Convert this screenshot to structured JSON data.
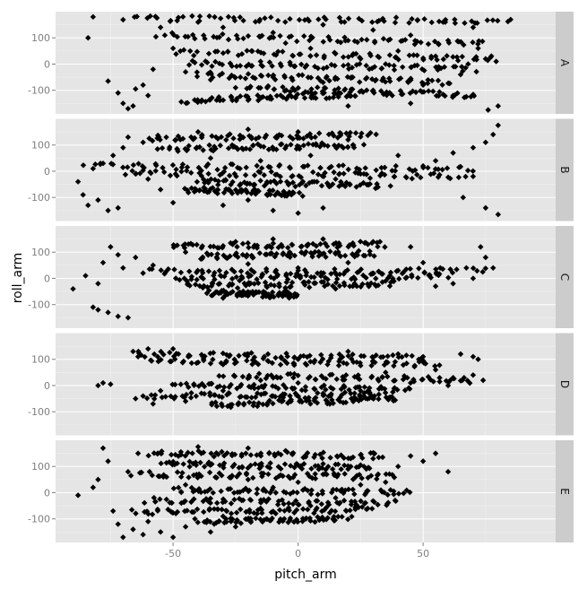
{
  "chart_data": {
    "type": "scatter",
    "xlabel": "pitch_arm",
    "ylabel": "roll_arm",
    "xlim": [
      -97,
      103
    ],
    "ylim": [
      -190,
      200
    ],
    "x_ticks": [
      -50,
      0,
      50
    ],
    "x_tick_labels": [
      "-50",
      "0",
      "50"
    ],
    "y_ticks": [
      -100,
      0,
      100
    ],
    "y_tick_labels": [
      "-100",
      "0",
      "100"
    ],
    "grid": true,
    "facet_by": "classe",
    "colors": {
      "point": "#000000",
      "panel_bg": "#e5e5e5",
      "strip_bg": "#cccccc",
      "grid": "#f2f2f2"
    },
    "panels": [
      {
        "label": "A",
        "bands": [
          {
            "x_from": -68,
            "x_to": 82,
            "y_from": 175,
            "y_to": 165
          },
          {
            "x_from": -55,
            "x_to": 75,
            "y_from": 110,
            "y_to": 80
          },
          {
            "x_from": -48,
            "x_to": 80,
            "y_from": 45,
            "y_to": 20
          },
          {
            "x_from": -45,
            "x_to": 70,
            "y_from": 5,
            "y_to": -20
          },
          {
            "x_from": -40,
            "x_to": 60,
            "y_from": -40,
            "y_to": -70
          },
          {
            "x_from": -20,
            "x_to": 70,
            "y_from": -90,
            "y_to": -120
          },
          {
            "x_from": -45,
            "x_to": 25,
            "y_from": -140,
            "y_to": -115
          }
        ],
        "points": [
          [
            -82,
            180
          ],
          [
            -84,
            100
          ],
          [
            -76,
            -65
          ],
          [
            -72,
            -110
          ],
          [
            -70,
            -150
          ],
          [
            -68,
            -170
          ],
          [
            -66,
            -160
          ],
          [
            -62,
            -80
          ],
          [
            -65,
            -95
          ],
          [
            -60,
            -120
          ],
          [
            80,
            -160
          ],
          [
            85,
            170
          ],
          [
            76,
            -175
          ],
          [
            70,
            140
          ],
          [
            58,
            160
          ],
          [
            -55,
            140
          ],
          [
            -58,
            -20
          ],
          [
            -50,
            60
          ],
          [
            -40,
            160
          ],
          [
            -30,
            140
          ],
          [
            -10,
            120
          ],
          [
            10,
            150
          ],
          [
            30,
            130
          ],
          [
            45,
            110
          ],
          [
            60,
            90
          ],
          [
            72,
            60
          ],
          [
            75,
            20
          ],
          [
            65,
            -40
          ],
          [
            50,
            -80
          ],
          [
            30,
            -100
          ],
          [
            10,
            -70
          ],
          [
            -10,
            -50
          ],
          [
            -25,
            -90
          ],
          [
            -35,
            -60
          ],
          [
            -45,
            -30
          ],
          [
            5,
            60
          ],
          [
            15,
            40
          ],
          [
            25,
            20
          ],
          [
            35,
            0
          ],
          [
            -15,
            10
          ],
          [
            -5,
            80
          ],
          [
            20,
            90
          ],
          [
            40,
            50
          ],
          [
            55,
            30
          ],
          [
            68,
            0
          ],
          [
            62,
            -120
          ],
          [
            45,
            -150
          ],
          [
            20,
            -160
          ]
        ]
      },
      {
        "label": "B",
        "bands": [
          {
            "x_from": -60,
            "x_to": 30,
            "y_from": 125,
            "y_to": 140
          },
          {
            "x_from": -55,
            "x_to": 25,
            "y_from": 85,
            "y_to": 100
          },
          {
            "x_from": -85,
            "x_to": 70,
            "y_from": 20,
            "y_to": 10
          },
          {
            "x_from": -70,
            "x_to": 65,
            "y_from": -5,
            "y_to": -20
          },
          {
            "x_from": -40,
            "x_to": 35,
            "y_from": -40,
            "y_to": -55
          },
          {
            "x_from": -45,
            "x_to": 0,
            "y_from": -70,
            "y_to": -85
          }
        ],
        "points": [
          [
            -88,
            -40
          ],
          [
            -86,
            -90
          ],
          [
            -84,
            -130
          ],
          [
            -80,
            -110
          ],
          [
            -76,
            -150
          ],
          [
            -72,
            -140
          ],
          [
            -74,
            60
          ],
          [
            -70,
            90
          ],
          [
            -68,
            130
          ],
          [
            -62,
            110
          ],
          [
            -78,
            30
          ],
          [
            -82,
            10
          ],
          [
            80,
            175
          ],
          [
            78,
            140
          ],
          [
            75,
            110
          ],
          [
            70,
            90
          ],
          [
            62,
            70
          ],
          [
            55,
            40
          ],
          [
            70,
            -20
          ],
          [
            66,
            -100
          ],
          [
            75,
            -140
          ],
          [
            80,
            -165
          ],
          [
            50,
            20
          ],
          [
            40,
            60
          ],
          [
            -30,
            -130
          ],
          [
            -10,
            -150
          ],
          [
            0,
            -160
          ],
          [
            10,
            -140
          ],
          [
            -20,
            -110
          ],
          [
            -50,
            -120
          ],
          [
            -40,
            150
          ],
          [
            -20,
            160
          ],
          [
            0,
            150
          ],
          [
            20,
            120
          ],
          [
            -35,
            50
          ],
          [
            -15,
            40
          ],
          [
            5,
            60
          ],
          [
            15,
            -30
          ],
          [
            25,
            -10
          ],
          [
            -60,
            -30
          ],
          [
            -55,
            -70
          ],
          [
            -65,
            -10
          ]
        ]
      },
      {
        "label": "C",
        "bands": [
          {
            "x_from": -50,
            "x_to": 35,
            "y_from": 125,
            "y_to": 130
          },
          {
            "x_from": -40,
            "x_to": 30,
            "y_from": 85,
            "y_to": 95
          },
          {
            "x_from": -60,
            "x_to": 75,
            "y_from": 25,
            "y_to": 30
          },
          {
            "x_from": -50,
            "x_to": 60,
            "y_from": 0,
            "y_to": 10
          },
          {
            "x_from": -45,
            "x_to": 40,
            "y_from": -30,
            "y_to": -20
          },
          {
            "x_from": -35,
            "x_to": 0,
            "y_from": -55,
            "y_to": -65
          }
        ],
        "points": [
          [
            -90,
            -40
          ],
          [
            -82,
            -110
          ],
          [
            -80,
            -120
          ],
          [
            -76,
            -130
          ],
          [
            -72,
            -145
          ],
          [
            -68,
            -150
          ],
          [
            -75,
            120
          ],
          [
            -72,
            90
          ],
          [
            -78,
            60
          ],
          [
            -70,
            40
          ],
          [
            -85,
            10
          ],
          [
            -80,
            -20
          ],
          [
            -65,
            80
          ],
          [
            -62,
            20
          ],
          [
            -58,
            50
          ],
          [
            73,
            120
          ],
          [
            75,
            80
          ],
          [
            78,
            40
          ],
          [
            70,
            0
          ],
          [
            62,
            -20
          ],
          [
            55,
            -30
          ],
          [
            50,
            60
          ],
          [
            45,
            120
          ],
          [
            30,
            140
          ],
          [
            10,
            150
          ],
          [
            -10,
            150
          ],
          [
            -25,
            140
          ],
          [
            20,
            60
          ],
          [
            0,
            40
          ],
          [
            -20,
            55
          ],
          [
            35,
            -10
          ],
          [
            15,
            -40
          ],
          [
            -5,
            -45
          ],
          [
            -30,
            -75
          ],
          [
            -45,
            100
          ],
          [
            40,
            30
          ]
        ]
      },
      {
        "label": "D",
        "bands": [
          {
            "x_from": -65,
            "x_to": 50,
            "y_from": 120,
            "y_to": 105
          },
          {
            "x_from": -60,
            "x_to": 55,
            "y_from": 95,
            "y_to": 80
          },
          {
            "x_from": -30,
            "x_to": 70,
            "y_from": 40,
            "y_to": 20
          },
          {
            "x_from": -50,
            "x_to": 45,
            "y_from": 0,
            "y_to": -15
          },
          {
            "x_from": -60,
            "x_to": 35,
            "y_from": -40,
            "y_to": -35
          },
          {
            "x_from": -35,
            "x_to": 40,
            "y_from": -75,
            "y_to": -50
          }
        ],
        "points": [
          [
            -80,
            0
          ],
          [
            -78,
            10
          ],
          [
            -75,
            5
          ],
          [
            -66,
            130
          ],
          [
            -64,
            110
          ],
          [
            -60,
            140
          ],
          [
            -62,
            -40
          ],
          [
            -65,
            -50
          ],
          [
            -58,
            -70
          ],
          [
            -50,
            140
          ],
          [
            -55,
            -20
          ],
          [
            -45,
            -60
          ],
          [
            65,
            120
          ],
          [
            70,
            110
          ],
          [
            72,
            100
          ],
          [
            74,
            20
          ],
          [
            70,
            40
          ],
          [
            62,
            30
          ],
          [
            55,
            60
          ],
          [
            50,
            110
          ],
          [
            40,
            120
          ],
          [
            30,
            90
          ],
          [
            20,
            130
          ],
          [
            0,
            100
          ],
          [
            -20,
            120
          ],
          [
            -30,
            80
          ],
          [
            10,
            30
          ],
          [
            0,
            10
          ],
          [
            -15,
            20
          ],
          [
            25,
            -20
          ],
          [
            10,
            -30
          ],
          [
            -10,
            -40
          ],
          [
            -30,
            -20
          ],
          [
            45,
            10
          ],
          [
            35,
            50
          ],
          [
            60,
            0
          ]
        ]
      },
      {
        "label": "E",
        "bands": [
          {
            "x_from": -60,
            "x_to": 35,
            "y_from": 150,
            "y_to": 140
          },
          {
            "x_from": -55,
            "x_to": 30,
            "y_from": 110,
            "y_to": 95
          },
          {
            "x_from": -65,
            "x_to": 40,
            "y_from": 70,
            "y_to": 60
          },
          {
            "x_from": -50,
            "x_to": 45,
            "y_from": 10,
            "y_to": 0
          },
          {
            "x_from": -60,
            "x_to": 40,
            "y_from": -30,
            "y_to": -40
          },
          {
            "x_from": -65,
            "x_to": 30,
            "y_from": -75,
            "y_to": -65
          },
          {
            "x_from": -40,
            "x_to": 20,
            "y_from": -110,
            "y_to": -100
          }
        ],
        "points": [
          [
            -88,
            -10
          ],
          [
            -82,
            20
          ],
          [
            -80,
            50
          ],
          [
            -78,
            170
          ],
          [
            -76,
            120
          ],
          [
            -74,
            -70
          ],
          [
            -72,
            -120
          ],
          [
            -70,
            -170
          ],
          [
            -68,
            80
          ],
          [
            -66,
            -140
          ],
          [
            -64,
            150
          ],
          [
            -62,
            -160
          ],
          [
            -60,
            -110
          ],
          [
            -55,
            -150
          ],
          [
            -50,
            -170
          ],
          [
            -45,
            -130
          ],
          [
            -35,
            -150
          ],
          [
            -25,
            -130
          ],
          [
            55,
            150
          ],
          [
            60,
            80
          ],
          [
            50,
            120
          ],
          [
            45,
            140
          ],
          [
            40,
            100
          ],
          [
            30,
            130
          ],
          [
            20,
            90
          ],
          [
            10,
            70
          ],
          [
            0,
            40
          ],
          [
            -10,
            20
          ],
          [
            -20,
            50
          ],
          [
            25,
            30
          ],
          [
            35,
            40
          ],
          [
            15,
            -20
          ],
          [
            5,
            -50
          ],
          [
            -15,
            -60
          ],
          [
            -30,
            -90
          ],
          [
            -5,
            160
          ],
          [
            -20,
            170
          ],
          [
            -40,
            175
          ],
          [
            10,
            110
          ],
          [
            -45,
            30
          ]
        ]
      }
    ]
  }
}
